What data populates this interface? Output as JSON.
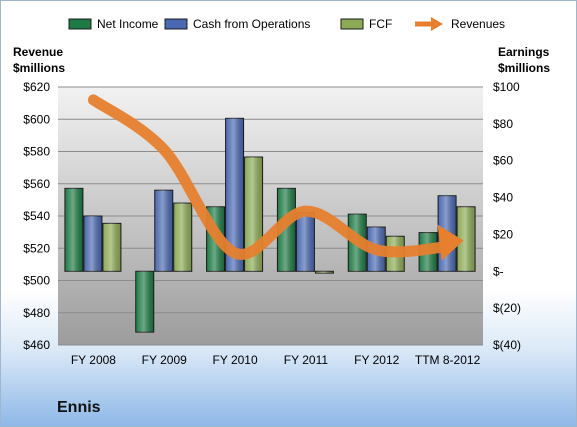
{
  "company_label": "Ennis",
  "chart_data": {
    "type": "bar",
    "categories": [
      "FY 2008",
      "FY 2009",
      "FY 2010",
      "FY 2011",
      "FY 2012",
      "TTM 8-2012"
    ],
    "left_axis": {
      "label_line1": "Revenue",
      "label_line2": "$millions",
      "range": [
        460,
        620
      ],
      "ticks": [
        "$620",
        "$600",
        "$580",
        "$560",
        "$540",
        "$520",
        "$500",
        "$480",
        "$460"
      ]
    },
    "right_axis": {
      "label_line1": "Earnings",
      "label_line2": "$millions",
      "range": [
        -40,
        100
      ],
      "ticks": [
        "$100",
        "$80",
        "$60",
        "$40",
        "$20",
        "$-",
        "$(20)",
        "$(40)"
      ]
    },
    "series": [
      {
        "name": "Net Income",
        "axis": "right",
        "color": "#1e7a45",
        "values": [
          45,
          -33,
          35,
          45,
          31,
          21
        ]
      },
      {
        "name": "Cash from Operations",
        "axis": "right",
        "color": "#4a68b0",
        "values": [
          30,
          44,
          83,
          32,
          24,
          41
        ]
      },
      {
        "name": "FCF",
        "axis": "right",
        "color": "#8caa55",
        "values": [
          26,
          37,
          62,
          -1,
          19,
          35
        ]
      },
      {
        "name": "Revenues",
        "axis": "left",
        "type": "line",
        "color": "#e67f2e",
        "values": [
          612,
          581,
          517,
          543,
          519,
          521
        ]
      }
    ],
    "grid": true
  }
}
